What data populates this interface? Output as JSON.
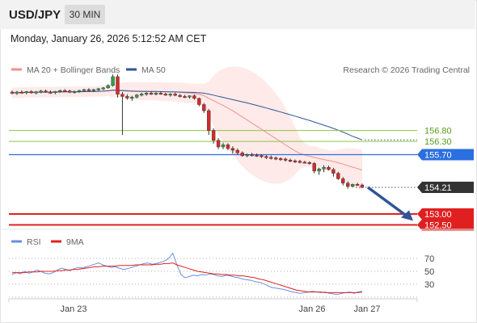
{
  "header": {
    "symbol": "USD/JPY",
    "timeframe": "30 MIN",
    "datetime": "Monday, January 26, 2026 5:12:52 AM CET"
  },
  "colors": {
    "bollinger": "#f2918a",
    "bollinger_fill": "#fde3e1",
    "ma50": "#2f5597",
    "resistance": "#8cc63f",
    "pivot": "#2b6fe0",
    "support": "#e02020",
    "arrow": "#2f5597",
    "rsi": "#6a8fdc",
    "rsi_ma": "#e02020"
  },
  "chart_data": [
    {
      "type": "candlestick",
      "legend": [
        "MA 20 + Bollinger Bands",
        "MA 50"
      ],
      "source": "Research © 2026 Trading Central",
      "x_ticks": [
        "Jan 23",
        "Jan 26",
        "Jan 27"
      ],
      "price_levels": [
        {
          "value": 156.8,
          "label": "156.80",
          "kind": "resistance"
        },
        {
          "value": 156.3,
          "label": "156.30",
          "kind": "resistance"
        },
        {
          "value": 155.7,
          "label": "155.70",
          "kind": "pivot"
        },
        {
          "value": 154.21,
          "label": "154.21",
          "kind": "last"
        },
        {
          "value": 153.0,
          "label": "153.00",
          "kind": "support"
        },
        {
          "value": 152.5,
          "label": "152.50",
          "kind": "support"
        }
      ],
      "ohlc": [
        [
          158.55,
          158.62,
          158.45,
          158.5
        ],
        [
          158.5,
          158.6,
          158.42,
          158.55
        ],
        [
          158.55,
          158.62,
          158.48,
          158.52
        ],
        [
          158.52,
          158.6,
          158.45,
          158.57
        ],
        [
          158.57,
          158.63,
          158.48,
          158.53
        ],
        [
          158.53,
          158.6,
          158.45,
          158.56
        ],
        [
          158.56,
          158.65,
          158.5,
          158.6
        ],
        [
          158.6,
          158.66,
          158.52,
          158.55
        ],
        [
          158.55,
          158.62,
          158.47,
          158.52
        ],
        [
          158.52,
          158.6,
          158.45,
          158.58
        ],
        [
          158.58,
          158.66,
          158.52,
          158.62
        ],
        [
          158.62,
          158.68,
          158.55,
          158.6
        ],
        [
          158.6,
          158.66,
          158.5,
          158.55
        ],
        [
          158.55,
          158.62,
          158.48,
          158.58
        ],
        [
          158.58,
          158.65,
          158.52,
          158.62
        ],
        [
          158.62,
          158.7,
          158.56,
          158.66
        ],
        [
          158.66,
          158.72,
          158.58,
          158.62
        ],
        [
          158.62,
          158.7,
          158.55,
          158.66
        ],
        [
          158.66,
          158.74,
          158.6,
          158.7
        ],
        [
          158.7,
          158.78,
          158.64,
          158.74
        ],
        [
          158.74,
          158.9,
          158.7,
          158.85
        ],
        [
          158.85,
          159.35,
          158.8,
          159.25
        ],
        [
          159.25,
          159.35,
          158.3,
          158.45
        ],
        [
          158.45,
          158.55,
          156.6,
          158.35
        ],
        [
          158.35,
          158.45,
          158.2,
          158.28
        ],
        [
          158.28,
          158.38,
          158.15,
          158.32
        ],
        [
          158.32,
          158.46,
          158.26,
          158.42
        ],
        [
          158.42,
          158.52,
          158.35,
          158.46
        ],
        [
          158.46,
          158.55,
          158.38,
          158.5
        ],
        [
          158.5,
          158.58,
          158.42,
          158.47
        ],
        [
          158.47,
          158.54,
          158.4,
          158.5
        ],
        [
          158.5,
          158.58,
          158.43,
          158.46
        ],
        [
          158.46,
          158.52,
          158.38,
          158.42
        ],
        [
          158.42,
          158.5,
          158.34,
          158.46
        ],
        [
          158.46,
          158.52,
          158.36,
          158.4
        ],
        [
          158.4,
          158.46,
          158.3,
          158.35
        ],
        [
          158.35,
          158.42,
          158.28,
          158.32
        ],
        [
          158.32,
          158.4,
          158.25,
          158.38
        ],
        [
          158.38,
          158.44,
          158.2,
          158.26
        ],
        [
          158.26,
          158.3,
          157.9,
          157.98
        ],
        [
          157.98,
          158.05,
          157.6,
          157.7
        ],
        [
          157.7,
          157.78,
          156.6,
          156.8
        ],
        [
          156.8,
          156.9,
          156.2,
          156.35
        ],
        [
          156.35,
          156.45,
          155.95,
          156.05
        ],
        [
          156.05,
          156.25,
          155.95,
          156.15
        ],
        [
          156.15,
          156.22,
          155.9,
          155.98
        ],
        [
          155.98,
          156.08,
          155.75,
          155.9
        ],
        [
          155.9,
          155.98,
          155.7,
          155.78
        ],
        [
          155.78,
          155.85,
          155.6,
          155.65
        ],
        [
          155.65,
          155.75,
          155.58,
          155.7
        ],
        [
          155.7,
          155.78,
          155.62,
          155.68
        ],
        [
          155.68,
          155.75,
          155.6,
          155.66
        ],
        [
          155.66,
          155.72,
          155.55,
          155.62
        ],
        [
          155.62,
          155.68,
          155.5,
          155.58
        ],
        [
          155.58,
          155.66,
          155.48,
          155.55
        ],
        [
          155.55,
          155.62,
          155.45,
          155.52
        ],
        [
          155.52,
          155.58,
          155.42,
          155.5
        ],
        [
          155.5,
          155.56,
          155.38,
          155.45
        ],
        [
          155.45,
          155.52,
          155.35,
          155.42
        ],
        [
          155.42,
          155.48,
          155.32,
          155.4
        ],
        [
          155.4,
          155.46,
          155.3,
          155.36
        ],
        [
          155.36,
          155.42,
          155.3,
          155.34
        ],
        [
          155.34,
          155.4,
          155.25,
          155.3
        ],
        [
          155.3,
          155.36,
          154.85,
          154.95
        ],
        [
          154.95,
          155.1,
          154.78,
          155.05
        ],
        [
          155.05,
          155.22,
          154.9,
          155.12
        ],
        [
          155.12,
          155.2,
          154.98,
          155.02
        ],
        [
          155.02,
          155.1,
          154.7,
          154.85
        ],
        [
          154.85,
          154.92,
          154.55,
          154.6
        ],
        [
          154.6,
          154.68,
          154.3,
          154.4
        ],
        [
          154.4,
          154.48,
          154.15,
          154.25
        ],
        [
          154.25,
          154.38,
          154.2,
          154.35
        ],
        [
          154.35,
          154.42,
          154.28,
          154.32
        ],
        [
          154.32,
          154.38,
          154.18,
          154.21
        ]
      ]
    },
    {
      "type": "line",
      "legend": [
        "RSI",
        "9MA"
      ],
      "y_ticks": [
        70,
        50,
        30
      ],
      "ylim": [
        10,
        80
      ],
      "series": [
        {
          "name": "RSI",
          "values": [
            45,
            48,
            46,
            50,
            47,
            49,
            52,
            50,
            47,
            46,
            48,
            52,
            55,
            53,
            51,
            54,
            56,
            55,
            57,
            59,
            61,
            63,
            60,
            58,
            56,
            57,
            55,
            53,
            54,
            56,
            58,
            60,
            62,
            63,
            61,
            62,
            64,
            66,
            70,
            78,
            60,
            45,
            40,
            42,
            44,
            43,
            45,
            44,
            46,
            45,
            43,
            42,
            44,
            43,
            41,
            40,
            38,
            37,
            36,
            34,
            33,
            31,
            28,
            25,
            24,
            23,
            22,
            20,
            18,
            17,
            16,
            17,
            18,
            19,
            18,
            17,
            18,
            16,
            15,
            14,
            16,
            17,
            18,
            16,
            18,
            19
          ]
        },
        {
          "name": "9MA",
          "values": [
            48,
            48,
            48,
            48,
            49,
            49,
            49,
            50,
            50,
            50,
            50,
            51,
            51,
            52,
            52,
            53,
            53,
            54,
            55,
            56,
            57,
            57,
            58,
            58,
            58,
            58,
            59,
            59,
            59,
            59,
            60,
            60,
            60,
            60,
            60,
            61,
            61,
            62,
            62,
            63,
            60,
            58,
            56,
            54,
            52,
            50,
            49,
            48,
            47,
            46,
            46,
            45,
            45,
            44,
            44,
            43,
            43,
            42,
            41,
            40,
            38,
            37,
            35,
            33,
            31,
            29,
            27,
            25,
            23,
            21,
            20,
            19,
            18,
            18,
            18,
            18,
            17,
            17,
            17,
            17,
            17,
            17,
            17,
            17,
            17,
            18
          ]
        }
      ]
    }
  ]
}
